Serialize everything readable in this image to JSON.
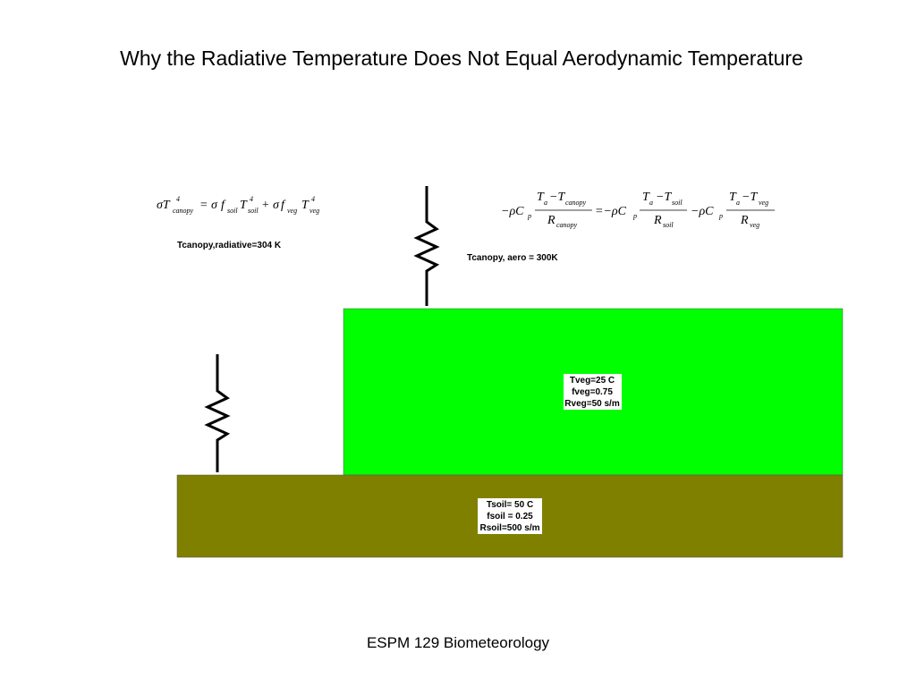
{
  "title": "Why the Radiative Temperature Does Not Equal Aerodynamic Temperature",
  "radiative": {
    "equation": [
      "σT",
      "4",
      "canopy",
      "= σ",
      "f",
      "soil",
      "T",
      "4",
      "soil",
      "+ σ",
      "f",
      "veg",
      "T",
      "4",
      "veg"
    ],
    "label": "Tcanopy,radiative=304 K"
  },
  "aero": {
    "equation": [
      "−ρC",
      "p",
      "T",
      "a",
      "−T",
      "canopy",
      "R",
      "canopy",
      "=−ρC",
      "p",
      "T",
      "a",
      "−T",
      "soil",
      "R",
      "soil",
      "−ρC",
      "p",
      "T",
      "a",
      "−T",
      "veg",
      "R",
      "veg"
    ],
    "label": "Tcanopy, aero = 300K"
  },
  "vegetation": {
    "lines": [
      "Tveg=25 C",
      "fveg=0.75",
      "Rveg=50 s/m"
    ]
  },
  "soil": {
    "lines": [
      "Tsoil= 50 C",
      "fsoil = 0.25",
      "Rsoil=500 s/m"
    ]
  },
  "footer": "ESPM 129 Biometeorology"
}
